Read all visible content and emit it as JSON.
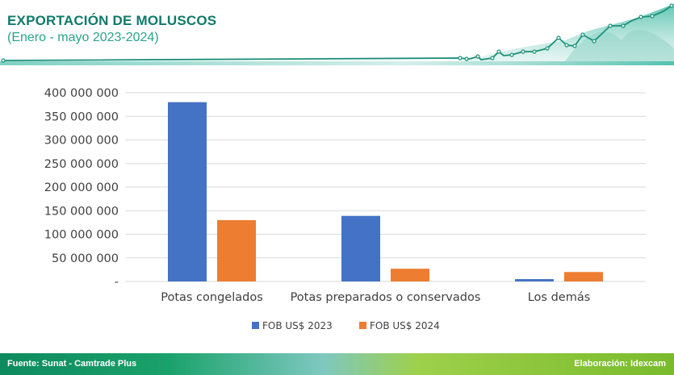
{
  "header": {
    "title": "EXPORTACIÓN DE MOLUSCOS",
    "subtitle": "(Enero - mayo 2023-2024)"
  },
  "footer": {
    "source": "Fuente: Sunat - Camtrade Plus",
    "credit": "Elaboración: Idexcam"
  },
  "colors": {
    "series_2023": "#4472c4",
    "series_2024": "#ed7d31",
    "title": "#0f7a6a",
    "accent": "#2aa38c"
  },
  "chart_data": {
    "type": "bar",
    "categories": [
      "Potas congelados",
      "Potas preparados o conservados",
      "Los demás"
    ],
    "series": [
      {
        "name": "FOB US$ 2023",
        "values": [
          380000000,
          139000000,
          5000000
        ]
      },
      {
        "name": "FOB US$ 2024",
        "values": [
          130000000,
          27000000,
          20000000
        ]
      }
    ],
    "ylim": [
      0,
      400000000
    ],
    "yticks": [
      0,
      50000000,
      100000000,
      150000000,
      200000000,
      250000000,
      300000000,
      350000000,
      400000000
    ],
    "ytick_labels": [
      "-",
      "50 000 000",
      "100 000 000",
      "150 000 000",
      "200 000 000",
      "250 000 000",
      "300 000 000",
      "350 000 000",
      "400 000 000"
    ],
    "legend_position": "bottom",
    "grid": true
  }
}
